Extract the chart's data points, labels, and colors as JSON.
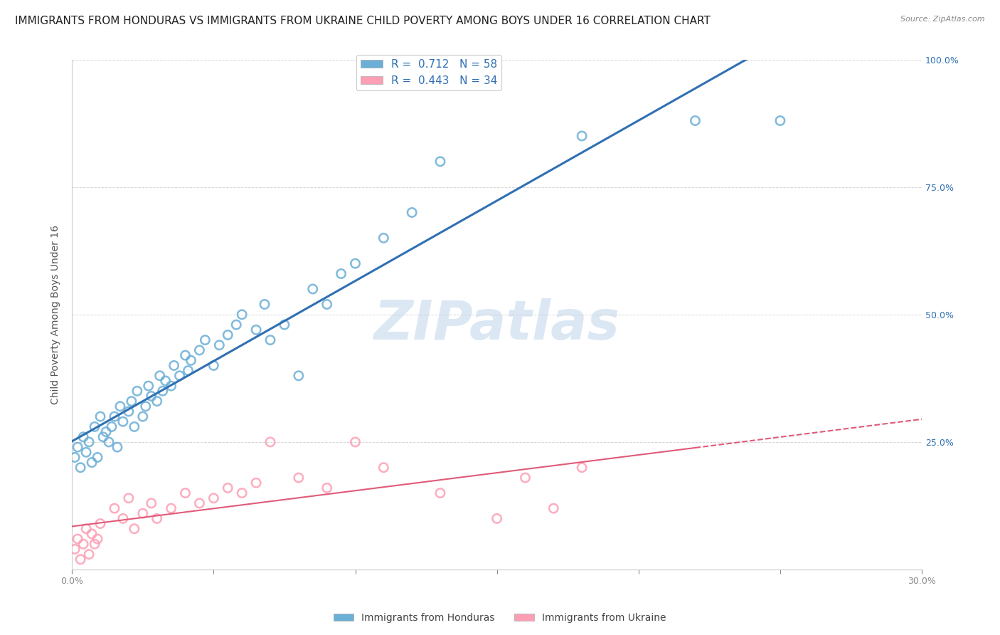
{
  "title": "IMMIGRANTS FROM HONDURAS VS IMMIGRANTS FROM UKRAINE CHILD POVERTY AMONG BOYS UNDER 16 CORRELATION CHART",
  "source": "Source: ZipAtlas.com",
  "ylabel": "Child Poverty Among Boys Under 16",
  "watermark": "ZIPatlas",
  "xlim": [
    0.0,
    0.3
  ],
  "ylim": [
    0.0,
    1.0
  ],
  "xticks": [
    0.0,
    0.05,
    0.1,
    0.15,
    0.2,
    0.25,
    0.3
  ],
  "xtick_labels": [
    "0.0%",
    "",
    "",
    "",
    "",
    "",
    "30.0%"
  ],
  "yticks": [
    0.0,
    0.25,
    0.5,
    0.75,
    1.0
  ],
  "ytick_labels_right": [
    "",
    "25.0%",
    "50.0%",
    "75.0%",
    "100.0%"
  ],
  "legend1_label": "R =  0.712   N = 58",
  "legend2_label": "R =  0.443   N = 34",
  "legend_sub1": "Immigrants from Honduras",
  "legend_sub2": "Immigrants from Ukraine",
  "honduras_color": "#6baed6",
  "ukraine_color": "#fc9fb4",
  "honduras_line_color": "#3070b3",
  "ukraine_line_color": "#e05a78",
  "right_tick_color": "#3070b3",
  "background_color": "#ffffff",
  "watermark_color": "#c5d8ee",
  "watermark_alpha": 0.6,
  "watermark_fontsize": 55,
  "title_fontsize": 11,
  "axis_label_fontsize": 10,
  "tick_fontsize": 9,
  "legend_fontsize": 11,
  "honduras_x": [
    0.001,
    0.002,
    0.003,
    0.004,
    0.005,
    0.006,
    0.007,
    0.008,
    0.009,
    0.01,
    0.011,
    0.012,
    0.013,
    0.014,
    0.015,
    0.016,
    0.017,
    0.018,
    0.02,
    0.021,
    0.022,
    0.023,
    0.025,
    0.026,
    0.027,
    0.028,
    0.03,
    0.031,
    0.032,
    0.033,
    0.035,
    0.036,
    0.038,
    0.04,
    0.041,
    0.042,
    0.045,
    0.047,
    0.05,
    0.052,
    0.055,
    0.058,
    0.06,
    0.065,
    0.068,
    0.07,
    0.075,
    0.08,
    0.085,
    0.09,
    0.095,
    0.1,
    0.11,
    0.12,
    0.13,
    0.18,
    0.22,
    0.25
  ],
  "honduras_y": [
    0.22,
    0.24,
    0.2,
    0.26,
    0.23,
    0.25,
    0.21,
    0.28,
    0.22,
    0.3,
    0.26,
    0.27,
    0.25,
    0.28,
    0.3,
    0.24,
    0.32,
    0.29,
    0.31,
    0.33,
    0.28,
    0.35,
    0.3,
    0.32,
    0.36,
    0.34,
    0.33,
    0.38,
    0.35,
    0.37,
    0.36,
    0.4,
    0.38,
    0.42,
    0.39,
    0.41,
    0.43,
    0.45,
    0.4,
    0.44,
    0.46,
    0.48,
    0.5,
    0.47,
    0.52,
    0.45,
    0.48,
    0.38,
    0.55,
    0.52,
    0.58,
    0.6,
    0.65,
    0.7,
    0.8,
    0.85,
    0.88,
    0.88
  ],
  "ukraine_x": [
    0.001,
    0.002,
    0.003,
    0.004,
    0.005,
    0.006,
    0.007,
    0.008,
    0.009,
    0.01,
    0.015,
    0.018,
    0.02,
    0.022,
    0.025,
    0.028,
    0.03,
    0.035,
    0.04,
    0.045,
    0.05,
    0.055,
    0.06,
    0.065,
    0.07,
    0.08,
    0.09,
    0.1,
    0.11,
    0.13,
    0.15,
    0.16,
    0.17,
    0.18
  ],
  "ukraine_y": [
    0.04,
    0.06,
    0.02,
    0.05,
    0.08,
    0.03,
    0.07,
    0.05,
    0.06,
    0.09,
    0.12,
    0.1,
    0.14,
    0.08,
    0.11,
    0.13,
    0.1,
    0.12,
    0.15,
    0.13,
    0.14,
    0.16,
    0.15,
    0.17,
    0.25,
    0.18,
    0.16,
    0.25,
    0.2,
    0.15,
    0.1,
    0.18,
    0.12,
    0.2
  ]
}
